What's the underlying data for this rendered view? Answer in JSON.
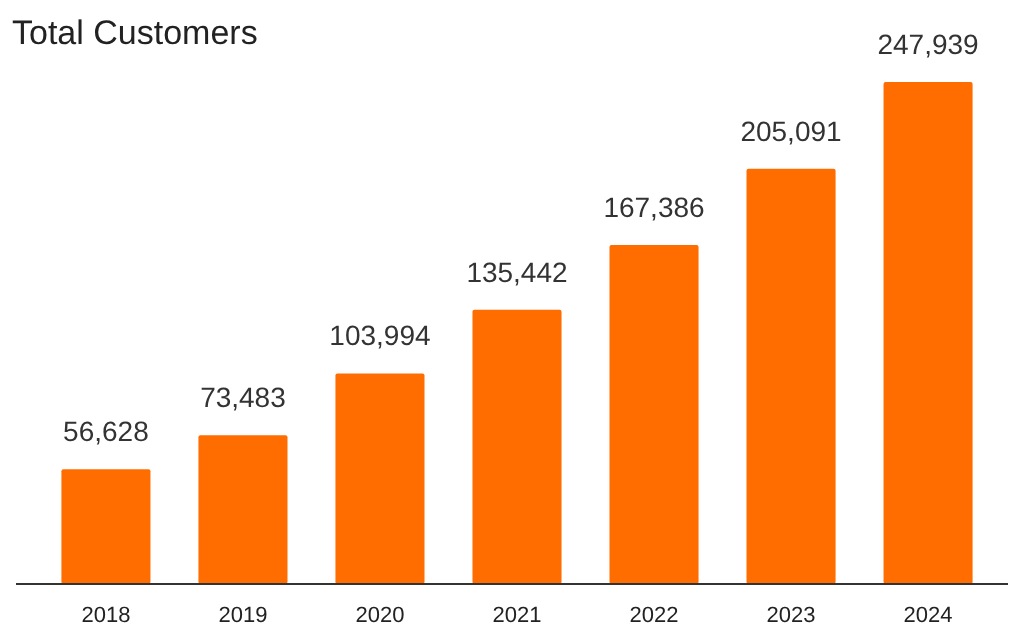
{
  "chart_data": {
    "type": "bar",
    "title": "Total Customers",
    "categories": [
      "2018",
      "2019",
      "2020",
      "2021",
      "2022",
      "2023",
      "2024"
    ],
    "values": [
      56628,
      73483,
      103994,
      135442,
      167386,
      205091,
      247939
    ],
    "value_labels": [
      "56,628",
      "73,483",
      "103,994",
      "135,442",
      "167,386",
      "205,091",
      "247,939"
    ],
    "color": "#ff6d01"
  }
}
